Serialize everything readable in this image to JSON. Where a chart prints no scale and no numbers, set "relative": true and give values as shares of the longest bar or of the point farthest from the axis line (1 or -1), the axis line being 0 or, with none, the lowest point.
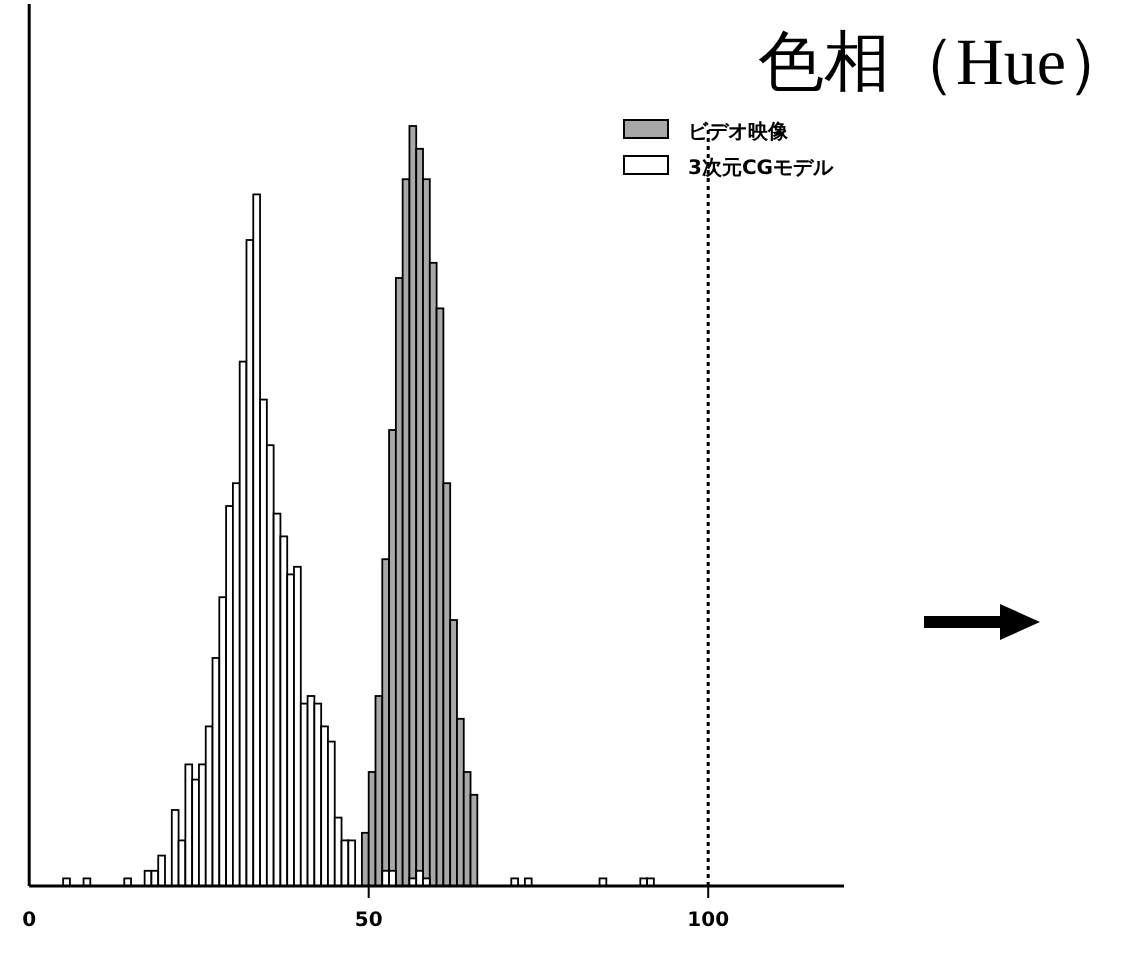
{
  "chart_data": {
    "type": "bar",
    "title": "色相（Hue）",
    "relative": true,
    "series": [
      {
        "name": "ビデオ映像",
        "color": "#a8a8a8",
        "x": [
          49.5,
          50.5,
          51.5,
          52.5,
          53.5,
          54.5,
          55.5,
          56.5,
          57.5,
          58.5,
          59.5,
          60.5,
          61.5,
          62.5,
          63.5,
          64.5,
          65.5
        ],
        "values": [
          0.07,
          0.15,
          0.25,
          0.43,
          0.6,
          0.8,
          0.93,
          1,
          0.97,
          0.93,
          0.82,
          0.76,
          0.53,
          0.35,
          0.22,
          0.15,
          0.12
        ]
      },
      {
        "name": "3次元CGモデル",
        "color": "#ffffff",
        "x": [
          5.5,
          8.5,
          14.5,
          17.5,
          18.5,
          19.5,
          21.5,
          22.5,
          23.5,
          24.5,
          25.5,
          26.5,
          27.5,
          28.5,
          29.5,
          30.5,
          31.5,
          32.5,
          33.5,
          34.5,
          35.5,
          36.5,
          37.5,
          38.5,
          39.5,
          40.5,
          41.5,
          42.5,
          43.5,
          44.5,
          45.5,
          46.5,
          47.5,
          52.5,
          53.5,
          56.5,
          57.5,
          58.5,
          71.5,
          73.5,
          84.5,
          90.5,
          91.5
        ],
        "values": [
          0.01,
          0.01,
          0.01,
          0.02,
          0.02,
          0.04,
          0.1,
          0.06,
          0.16,
          0.14,
          0.16,
          0.21,
          0.3,
          0.38,
          0.5,
          0.53,
          0.69,
          0.85,
          0.91,
          0.64,
          0.58,
          0.49,
          0.46,
          0.41,
          0.42,
          0.24,
          0.25,
          0.24,
          0.21,
          0.19,
          0.09,
          0.06,
          0.06,
          0.02,
          0.02,
          0.01,
          0.02,
          0.01,
          0.01,
          0.01,
          0.01,
          0.01,
          0.01
        ]
      }
    ],
    "xlim": [
      0,
      120
    ],
    "xticks": [
      0,
      50,
      100
    ],
    "ref_lines": [
      {
        "axis": "x",
        "value": 100,
        "line_style": "dotted"
      }
    ],
    "legend": "top right"
  }
}
